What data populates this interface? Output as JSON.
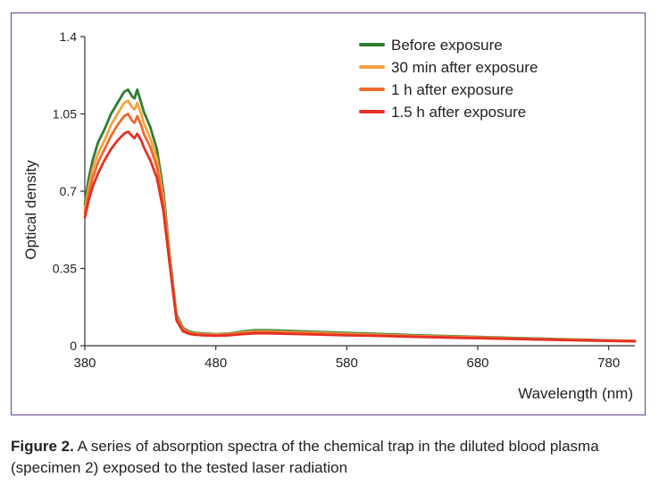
{
  "caption": {
    "label": "Figure 2.",
    "text": "A series of absorption spectra of the chemical trap in the diluted blood plasma (specimen 2) exposed to the tested laser radiation"
  },
  "chart_data": {
    "type": "line",
    "xlabel": "Wavelength (nm)",
    "ylabel": "Optical density",
    "xlim": [
      380,
      800
    ],
    "ylim": [
      0,
      1.4
    ],
    "xticks": [
      "380",
      "480",
      "580",
      "680",
      "780"
    ],
    "yticks": [
      "0",
      "0.35",
      "0.7",
      "1.05",
      "1.4"
    ],
    "legend_position": "top-right",
    "grid": false,
    "series": [
      {
        "name": "Before exposure",
        "color": "#2e7d32",
        "x": [
          380,
          383,
          386,
          390,
          395,
          400,
          405,
          410,
          413,
          416,
          418,
          420,
          423,
          425,
          430,
          435,
          440,
          445,
          450,
          455,
          460,
          465,
          470,
          480,
          490,
          500,
          510,
          520,
          540,
          560,
          580,
          600,
          640,
          680,
          720,
          760,
          800
        ],
        "y": [
          0.64,
          0.76,
          0.84,
          0.92,
          0.98,
          1.05,
          1.1,
          1.15,
          1.16,
          1.13,
          1.12,
          1.16,
          1.1,
          1.06,
          0.99,
          0.89,
          0.7,
          0.4,
          0.14,
          0.08,
          0.064,
          0.058,
          0.056,
          0.052,
          0.055,
          0.064,
          0.07,
          0.07,
          0.066,
          0.062,
          0.058,
          0.054,
          0.046,
          0.04,
          0.033,
          0.027,
          0.022
        ]
      },
      {
        "name": "30 min after exposure",
        "color": "#f4a340",
        "x": [
          380,
          383,
          386,
          390,
          395,
          400,
          405,
          410,
          413,
          416,
          418,
          420,
          423,
          425,
          430,
          435,
          440,
          445,
          450,
          455,
          460,
          465,
          470,
          480,
          490,
          500,
          510,
          520,
          540,
          560,
          580,
          600,
          640,
          680,
          720,
          760,
          800
        ],
        "y": [
          0.62,
          0.72,
          0.8,
          0.87,
          0.93,
          1.0,
          1.05,
          1.1,
          1.11,
          1.08,
          1.07,
          1.1,
          1.05,
          1.01,
          0.94,
          0.85,
          0.67,
          0.39,
          0.13,
          0.075,
          0.06,
          0.055,
          0.053,
          0.05,
          0.053,
          0.06,
          0.065,
          0.065,
          0.061,
          0.058,
          0.054,
          0.05,
          0.043,
          0.038,
          0.031,
          0.026,
          0.021
        ]
      },
      {
        "name": "1 h after exposure",
        "color": "#ef6a2c",
        "x": [
          380,
          383,
          386,
          390,
          395,
          400,
          405,
          410,
          413,
          416,
          418,
          420,
          423,
          425,
          430,
          435,
          440,
          445,
          450,
          455,
          460,
          465,
          470,
          480,
          490,
          500,
          510,
          520,
          540,
          560,
          580,
          600,
          640,
          680,
          720,
          760,
          800
        ],
        "y": [
          0.6,
          0.69,
          0.76,
          0.83,
          0.89,
          0.95,
          1.0,
          1.04,
          1.05,
          1.02,
          1.01,
          1.04,
          1.0,
          0.96,
          0.9,
          0.81,
          0.64,
          0.37,
          0.12,
          0.07,
          0.057,
          0.052,
          0.05,
          0.047,
          0.05,
          0.056,
          0.06,
          0.06,
          0.057,
          0.054,
          0.05,
          0.047,
          0.041,
          0.036,
          0.03,
          0.025,
          0.021
        ]
      },
      {
        "name": "1.5 h after exposure",
        "color": "#e53025",
        "x": [
          380,
          383,
          386,
          390,
          395,
          400,
          405,
          410,
          413,
          416,
          418,
          420,
          423,
          425,
          430,
          435,
          440,
          445,
          450,
          455,
          460,
          465,
          470,
          480,
          490,
          500,
          510,
          520,
          540,
          560,
          580,
          600,
          640,
          680,
          720,
          760,
          800
        ],
        "y": [
          0.58,
          0.66,
          0.72,
          0.78,
          0.84,
          0.89,
          0.93,
          0.96,
          0.97,
          0.95,
          0.94,
          0.96,
          0.93,
          0.9,
          0.84,
          0.76,
          0.61,
          0.36,
          0.115,
          0.065,
          0.053,
          0.049,
          0.047,
          0.045,
          0.047,
          0.052,
          0.056,
          0.056,
          0.053,
          0.05,
          0.047,
          0.045,
          0.039,
          0.034,
          0.029,
          0.024,
          0.02
        ]
      }
    ]
  }
}
